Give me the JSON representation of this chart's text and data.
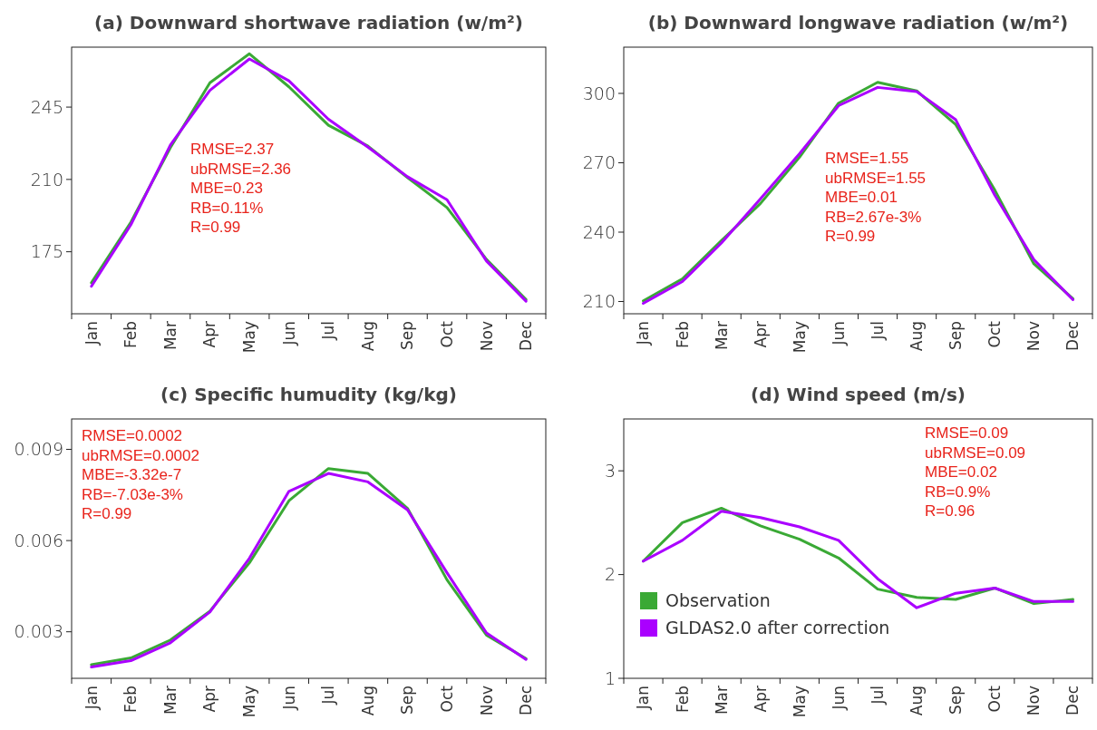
{
  "chart_data": [
    {
      "type": "line",
      "title": "(a) Downward shortwave radiation (w/m²)",
      "categories": [
        "Jan",
        "Feb",
        "Mar",
        "Apr",
        "May",
        "Jun",
        "Jul",
        "Aug",
        "Sep",
        "Oct",
        "Nov",
        "Dec"
      ],
      "ylim": [
        145,
        274
      ],
      "yticks": [
        175,
        210,
        245
      ],
      "series": [
        {
          "color": "#3aa935",
          "values": [
            160.0,
            189.3,
            225.4,
            256.8,
            270.8,
            254.8,
            236.2,
            226.1,
            210.9,
            196.4,
            171.3,
            151.9
          ]
        },
        {
          "color": "#aa00ff",
          "values": [
            158.3,
            188.1,
            226.7,
            253.1,
            268.3,
            257.7,
            239.1,
            225.6,
            211.3,
            200.2,
            170.5,
            151.1
          ]
        }
      ],
      "annotations": [
        "RMSE=2.37",
        "ubRMSE=2.36",
        "MBE=0.23",
        "RB=0.11%",
        "R=0.99"
      ]
    },
    {
      "type": "line",
      "title": "(b) Downward longwave radiation (w/m²)",
      "categories": [
        "Jan",
        "Feb",
        "Mar",
        "Apr",
        "May",
        "Jun",
        "Jul",
        "Aug",
        "Sep",
        "Oct",
        "Nov",
        "Dec"
      ],
      "ylim": [
        204.7,
        320
      ],
      "yticks": [
        210,
        240,
        270,
        300
      ],
      "series": [
        {
          "color": "#3aa935",
          "values": [
            210.3,
            219.8,
            236.3,
            252.4,
            272.4,
            295.8,
            304.8,
            301.1,
            286.5,
            258.2,
            226.3,
            211.2
          ]
        },
        {
          "color": "#aa00ff",
          "values": [
            209.2,
            218.6,
            235.3,
            254.4,
            273.9,
            294.7,
            302.6,
            300.8,
            288.6,
            256.0,
            228.1,
            210.8
          ]
        }
      ],
      "annotations": [
        "RMSE=1.55",
        "ubRMSE=1.55",
        "MBE=0.01",
        "RB=2.67e-3%",
        "R=0.99"
      ]
    },
    {
      "type": "line",
      "title": "(c) Specific humudity (kg/kg)",
      "categories": [
        "Jan",
        "Feb",
        "Mar",
        "Apr",
        "May",
        "Jun",
        "Jul",
        "Aug",
        "Sep",
        "Oct",
        "Nov",
        "Dec"
      ],
      "ylim": [
        0.00147,
        0.01
      ],
      "yticks": [
        0.003,
        0.006,
        0.009
      ],
      "series": [
        {
          "color": "#3aa935",
          "values": [
            0.00192,
            0.00214,
            0.00273,
            0.00368,
            0.00527,
            0.00731,
            0.00837,
            0.00821,
            0.00706,
            0.00471,
            0.00289,
            0.00212
          ]
        },
        {
          "color": "#aa00ff",
          "values": [
            0.00184,
            0.00205,
            0.00264,
            0.00365,
            0.00542,
            0.00762,
            0.00821,
            0.00793,
            0.00701,
            0.00494,
            0.00296,
            0.00209
          ]
        }
      ],
      "annotations": [
        "RMSE=0.0002",
        "ubRMSE=0.0002",
        "MBE=-3.32e-7",
        "RB=-7.03e-3%",
        "R=0.99"
      ]
    },
    {
      "type": "line",
      "title": "(d) Wind speed (m/s)",
      "categories": [
        "Jan",
        "Feb",
        "Mar",
        "Apr",
        "May",
        "Jun",
        "Jul",
        "Aug",
        "Sep",
        "Oct",
        "Nov",
        "Dec"
      ],
      "ylim": [
        1,
        3.5
      ],
      "yticks": [
        1,
        2,
        3
      ],
      "legend": "bottom left",
      "series": [
        {
          "name": "Observation",
          "color": "#3aa935",
          "values": [
            2.13,
            2.5,
            2.64,
            2.47,
            2.34,
            2.16,
            1.86,
            1.78,
            1.76,
            1.87,
            1.72,
            1.76
          ]
        },
        {
          "name": "GLDAS2.0 after correction",
          "color": "#aa00ff",
          "values": [
            2.13,
            2.33,
            2.61,
            2.55,
            2.46,
            2.33,
            1.96,
            1.68,
            1.82,
            1.87,
            1.74,
            1.74
          ]
        }
      ],
      "annotations": [
        "RMSE=0.09",
        "ubRMSE=0.09",
        "MBE=0.02",
        "RB=0.9%",
        "R=0.96"
      ]
    }
  ]
}
